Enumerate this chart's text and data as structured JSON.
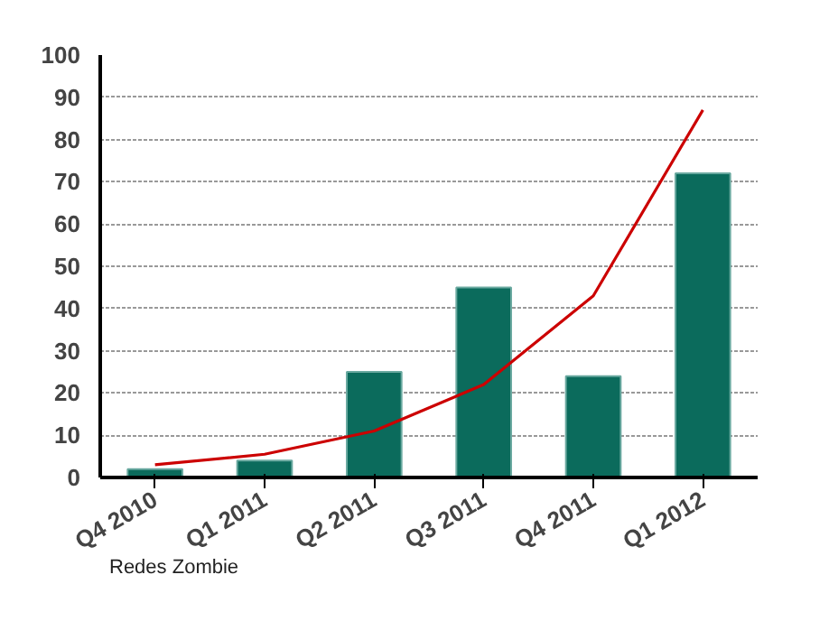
{
  "chart_data": {
    "type": "bar",
    "categories": [
      "Q4 2010",
      "Q1 2011",
      "Q2 2011",
      "Q3 2011",
      "Q4 2011",
      "Q1 2012"
    ],
    "series": [
      {
        "color": "#0b6b5c",
        "values": [
          2,
          4,
          25,
          45,
          24,
          72
        ]
      },
      {
        "type": "line",
        "color": "#cc0000",
        "values": [
          3,
          5.5,
          11,
          22,
          43,
          87
        ]
      }
    ],
    "ylim": [
      0,
      100
    ],
    "yticks": [
      0,
      10,
      20,
      30,
      40,
      50,
      60,
      70,
      80,
      90,
      100
    ],
    "grid": "y",
    "annotations": [
      "Redes Zombie"
    ]
  }
}
